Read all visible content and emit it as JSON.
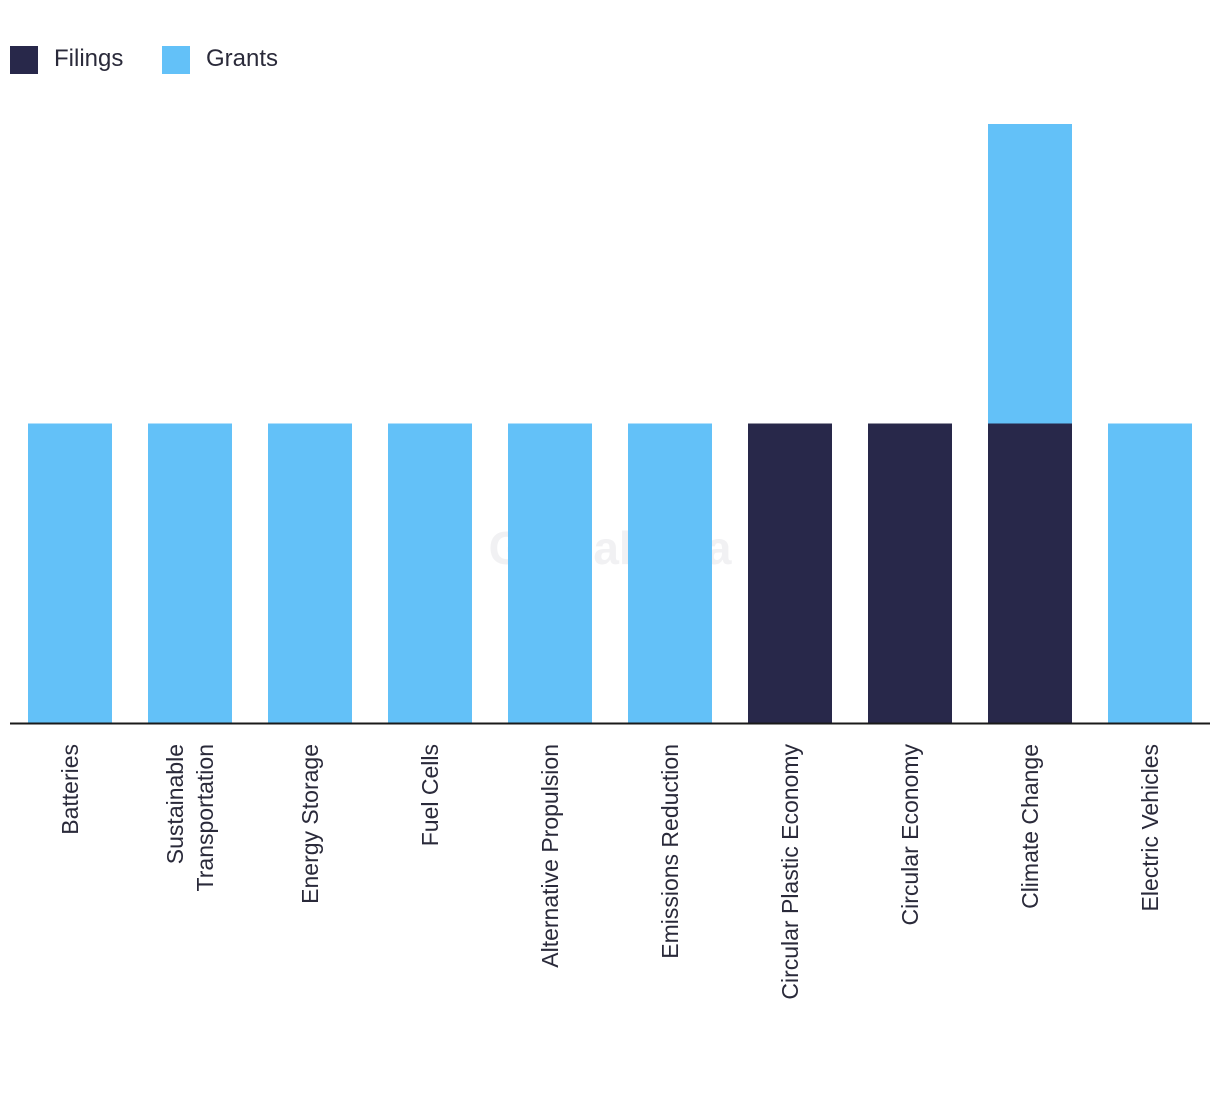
{
  "chart_data": {
    "type": "bar",
    "stacked": true,
    "title": "",
    "xlabel": "",
    "ylabel": "",
    "ylim": [
      0,
      2
    ],
    "categories": [
      [
        "Batteries"
      ],
      [
        "Sustainable",
        "Transportation"
      ],
      [
        "Energy Storage"
      ],
      [
        "Fuel Cells"
      ],
      [
        "Alternative Propulsion"
      ],
      [
        "Emissions Reduction"
      ],
      [
        "Circular Plastic Economy"
      ],
      [
        "Circular Economy"
      ],
      [
        "Climate Change"
      ],
      [
        "Electric Vehicles"
      ]
    ],
    "series": [
      {
        "name": "Filings",
        "color": "#28284a",
        "values": [
          0,
          0,
          0,
          0,
          0,
          0,
          1,
          1,
          1,
          0
        ]
      },
      {
        "name": "Grants",
        "color": "#63c1f8",
        "values": [
          1,
          1,
          1,
          1,
          1,
          1,
          0,
          0,
          1,
          1
        ]
      }
    ],
    "legend_position": "top-left",
    "grid": false
  },
  "watermark": "GlobalData"
}
